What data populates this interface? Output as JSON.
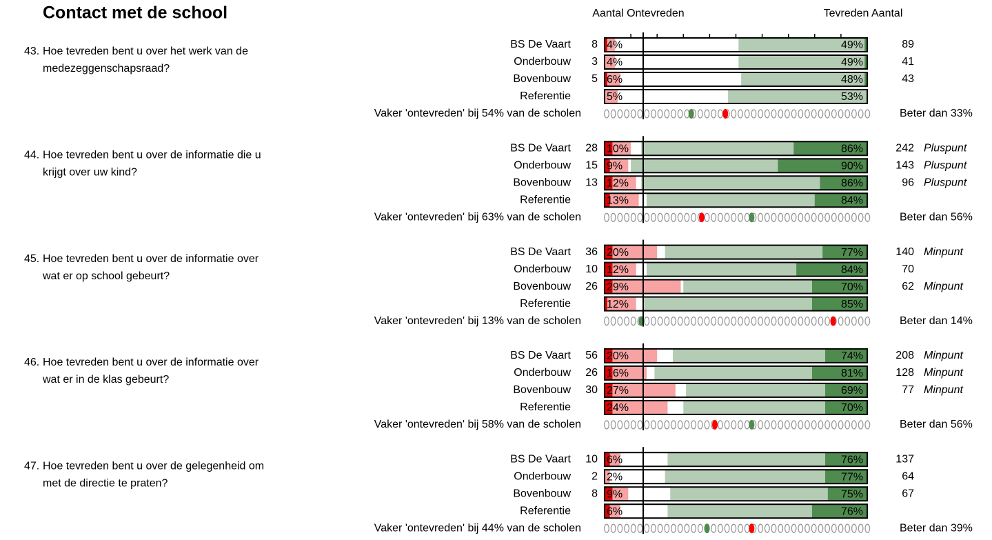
{
  "header": {
    "title": "Contact met de school",
    "left_heading": "Aantal Ontevreden",
    "right_heading": "Tevreden Aantal"
  },
  "sections": [
    {
      "number": "43.",
      "question": [
        "Hoe tevreden bent u over het werk van de",
        "medezeggenschapsraad?"
      ],
      "rows": [
        {
          "group": "BS De Vaart",
          "count_left": 8,
          "dis": {
            "value": 4,
            "label": "4%"
          },
          "dis_dark": 1,
          "sat": {
            "value": 49,
            "label": "49%"
          },
          "sat_dark": 1,
          "count_right": 89
        },
        {
          "group": "Onderbouw",
          "count_left": 3,
          "dis": {
            "value": 4,
            "label": "4%"
          },
          "dis_dark": 0,
          "sat": {
            "value": 49,
            "label": "49%"
          },
          "sat_dark": 1,
          "count_right": 41
        },
        {
          "group": "Bovenbouw",
          "count_left": 5,
          "dis": {
            "value": 6,
            "label": "6%"
          },
          "dis_dark": 1,
          "sat": {
            "value": 48,
            "label": "48%"
          },
          "sat_dark": 1,
          "count_right": 43
        },
        {
          "group": "Referentie",
          "dis": {
            "value": 5,
            "label": "5%"
          },
          "dis_dark": 0,
          "sat": {
            "value": 53,
            "label": "53%"
          },
          "sat_dark": 0
        }
      ],
      "vaker": {
        "value": 54,
        "label": "Vaker 'ontevreden' bij 54% van de scholen"
      },
      "beter": {
        "value": 33,
        "label": "Beter dan 33%"
      }
    },
    {
      "number": "44.",
      "question": [
        "Hoe tevreden bent u over de informatie die u",
        "krijgt over uw kind?"
      ],
      "rows": [
        {
          "group": "BS De Vaart",
          "count_left": 28,
          "dis": {
            "value": 10,
            "label": "10%"
          },
          "dis_dark": 3,
          "sat": {
            "value": 86,
            "label": "86%"
          },
          "sat_dark": 28,
          "count_right": 242,
          "note": "Pluspunt"
        },
        {
          "group": "Onderbouw",
          "count_left": 15,
          "dis": {
            "value": 9,
            "label": "9%"
          },
          "dis_dark": 2,
          "sat": {
            "value": 90,
            "label": "90%"
          },
          "sat_dark": 34,
          "count_right": 143,
          "note": "Pluspunt"
        },
        {
          "group": "Bovenbouw",
          "count_left": 13,
          "dis": {
            "value": 12,
            "label": "12%"
          },
          "dis_dark": 3,
          "sat": {
            "value": 86,
            "label": "86%"
          },
          "sat_dark": 18,
          "count_right": 96,
          "note": "Pluspunt"
        },
        {
          "group": "Referentie",
          "dis": {
            "value": 13,
            "label": "13%"
          },
          "dis_dark": 2,
          "sat": {
            "value": 84,
            "label": "84%"
          },
          "sat_dark": 20
        }
      ],
      "vaker": {
        "value": 63,
        "label": "Vaker 'ontevreden' bij 63% van de scholen"
      },
      "beter": {
        "value": 56,
        "label": "Beter dan 56%"
      }
    },
    {
      "number": "45.",
      "question": [
        "Hoe tevreden bent u over de informatie over",
        "wat er op school gebeurt?"
      ],
      "rows": [
        {
          "group": "BS De Vaart",
          "count_left": 36,
          "dis": {
            "value": 20,
            "label": "20%"
          },
          "dis_dark": 3,
          "sat": {
            "value": 77,
            "label": "77%"
          },
          "sat_dark": 17,
          "count_right": 140,
          "note": "Minpunt"
        },
        {
          "group": "Onderbouw",
          "count_left": 10,
          "dis": {
            "value": 12,
            "label": "12%"
          },
          "dis_dark": 3,
          "sat": {
            "value": 84,
            "label": "84%"
          },
          "sat_dark": 27,
          "count_right": 70
        },
        {
          "group": "Bovenbouw",
          "count_left": 26,
          "dis": {
            "value": 29,
            "label": "29%"
          },
          "dis_dark": 3,
          "sat": {
            "value": 70,
            "label": "70%"
          },
          "sat_dark": 21,
          "count_right": 62,
          "note": "Minpunt"
        },
        {
          "group": "Referentie",
          "dis": {
            "value": 12,
            "label": "12%"
          },
          "dis_dark": 1,
          "sat": {
            "value": 85,
            "label": "85%"
          },
          "sat_dark": 21
        }
      ],
      "vaker": {
        "value": 13,
        "label": "Vaker 'ontevreden' bij 13% van de scholen"
      },
      "beter": {
        "value": 14,
        "label": "Beter dan 14%"
      }
    },
    {
      "number": "46.",
      "question": [
        "Hoe tevreden bent u over de informatie over",
        "wat er in de klas gebeurt?"
      ],
      "rows": [
        {
          "group": "BS De Vaart",
          "count_left": 56,
          "dis": {
            "value": 20,
            "label": "20%"
          },
          "dis_dark": 3,
          "sat": {
            "value": 74,
            "label": "74%"
          },
          "sat_dark": 16,
          "count_right": 208,
          "note": "Minpunt"
        },
        {
          "group": "Onderbouw",
          "count_left": 26,
          "dis": {
            "value": 16,
            "label": "16%"
          },
          "dis_dark": 3,
          "sat": {
            "value": 81,
            "label": "81%"
          },
          "sat_dark": 21,
          "count_right": 128,
          "note": "Minpunt"
        },
        {
          "group": "Bovenbouw",
          "count_left": 30,
          "dis": {
            "value": 27,
            "label": "27%"
          },
          "dis_dark": 3,
          "sat": {
            "value": 69,
            "label": "69%"
          },
          "sat_dark": 16,
          "count_right": 77,
          "note": "Minpunt"
        },
        {
          "group": "Referentie",
          "dis": {
            "value": 24,
            "label": "24%"
          },
          "dis_dark": 3,
          "sat": {
            "value": 70,
            "label": "70%"
          },
          "sat_dark": 16
        }
      ],
      "vaker": {
        "value": 58,
        "label": "Vaker 'ontevreden' bij 58% van de scholen"
      },
      "beter": {
        "value": 56,
        "label": "Beter dan 56%"
      }
    },
    {
      "number": "47.",
      "question": [
        "Hoe tevreden bent u over de gelegenheid om",
        "met de directie te praten?"
      ],
      "rows": [
        {
          "group": "BS De Vaart",
          "count_left": 10,
          "dis": {
            "value": 6,
            "label": "6%"
          },
          "dis_dark": 2,
          "sat": {
            "value": 76,
            "label": "76%"
          },
          "sat_dark": 16,
          "count_right": 137
        },
        {
          "group": "Onderbouw",
          "count_left": 2,
          "dis": {
            "value": 2,
            "label": "2%"
          },
          "dis_dark": 0,
          "sat": {
            "value": 77,
            "label": "77%"
          },
          "sat_dark": 16,
          "count_right": 64
        },
        {
          "group": "Bovenbouw",
          "count_left": 8,
          "dis": {
            "value": 9,
            "label": "9%"
          },
          "dis_dark": 3,
          "sat": {
            "value": 75,
            "label": "75%"
          },
          "sat_dark": 15,
          "count_right": 67
        },
        {
          "group": "Referentie",
          "dis": {
            "value": 6,
            "label": "6%"
          },
          "dis_dark": 2,
          "sat": {
            "value": 76,
            "label": "76%"
          },
          "sat_dark": 21
        }
      ],
      "vaker": {
        "value": 44,
        "label": "Vaker 'ontevreden' bij 44% van de scholen"
      },
      "beter": {
        "value": 39,
        "label": "Beter dan 39%"
      }
    }
  ]
}
